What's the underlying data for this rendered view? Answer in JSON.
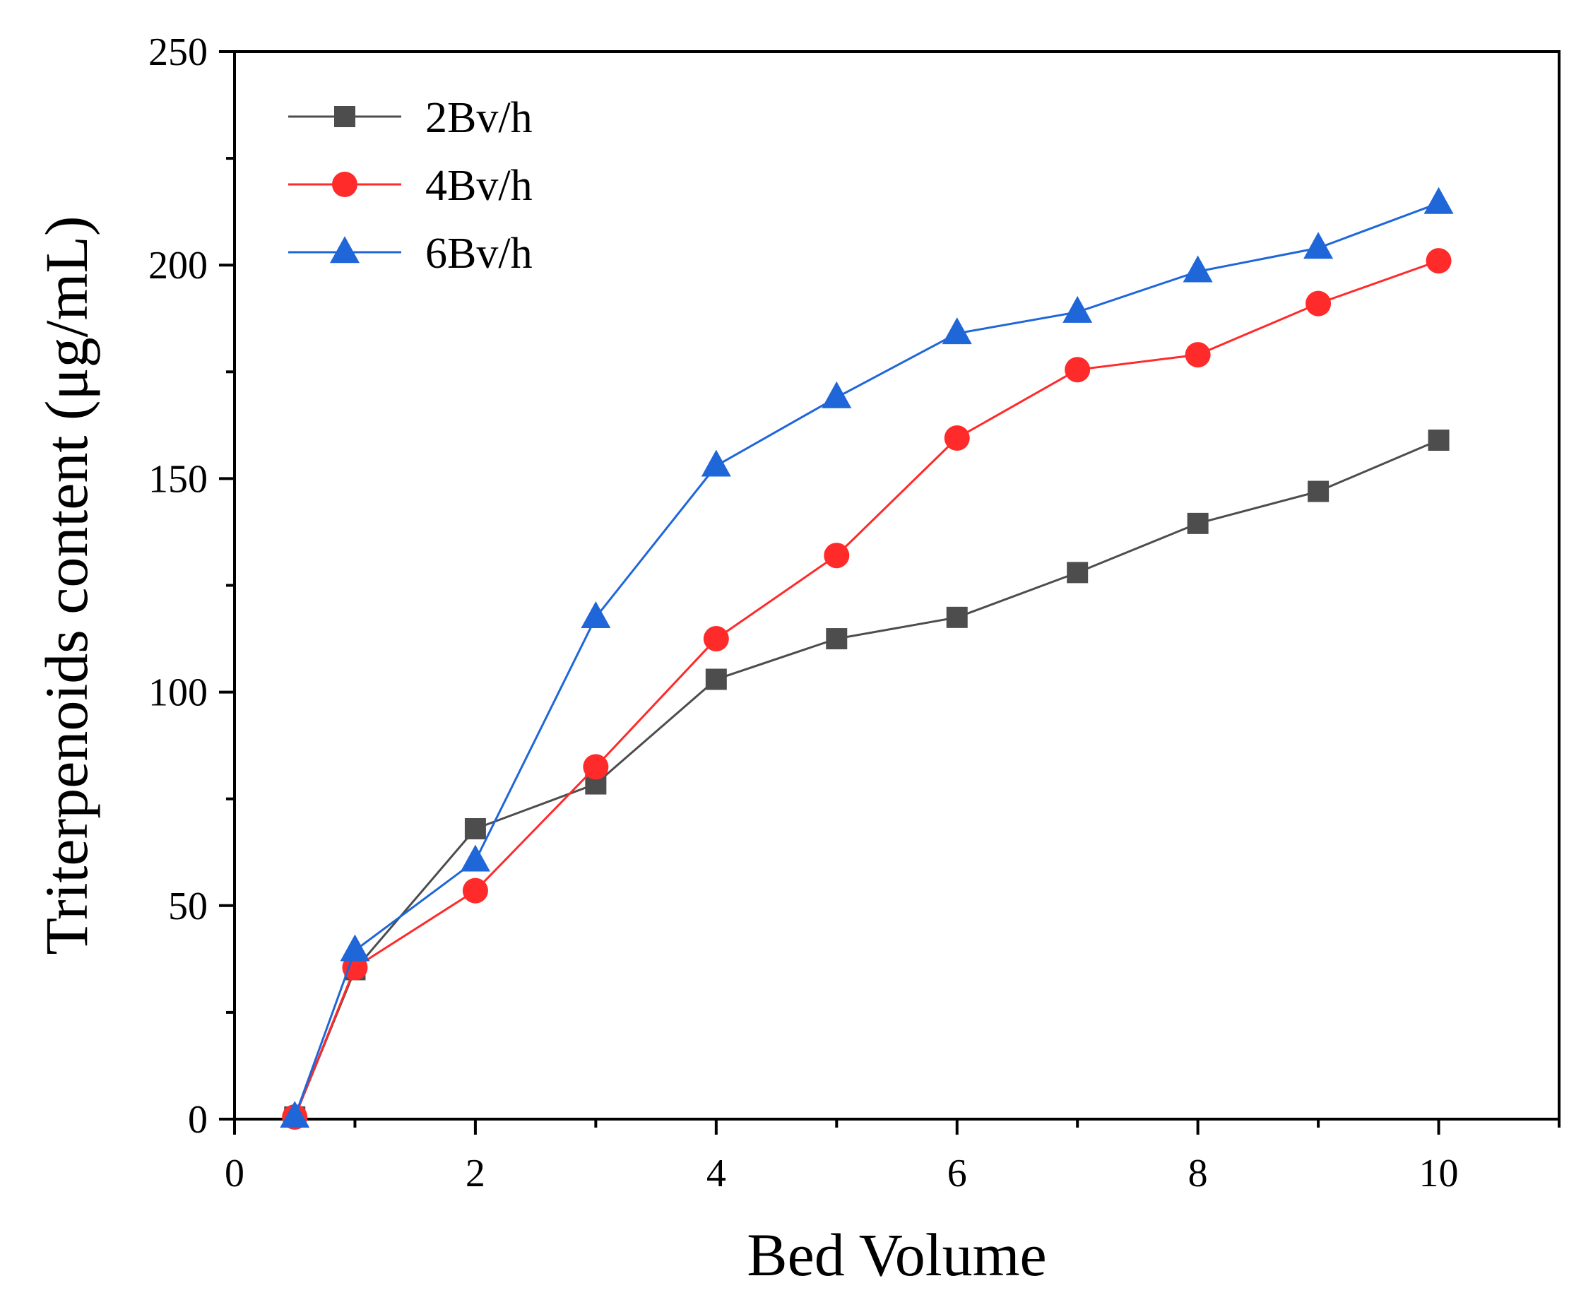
{
  "chart_data": {
    "type": "line",
    "title": "",
    "xlabel": "Bed Volume",
    "ylabel": "Triterpenoids content (μg/mL)",
    "xlim": [
      0,
      11
    ],
    "ylim": [
      0,
      250
    ],
    "xticks": [
      0,
      2,
      4,
      6,
      8,
      10
    ],
    "yticks": [
      0,
      50,
      100,
      150,
      200,
      250
    ],
    "x_minor_ticks": [
      1,
      3,
      5,
      7,
      9,
      11
    ],
    "y_minor_ticks": [
      25,
      75,
      125,
      175,
      225
    ],
    "grid": false,
    "legend_position": "top-left",
    "x": [
      0.5,
      1,
      2,
      3,
      4,
      5,
      6,
      7,
      8,
      9,
      10
    ],
    "series": [
      {
        "name": "2Bv/h",
        "color": "#4d4d4d",
        "marker": "square",
        "values": [
          0.5,
          35,
          68,
          78.5,
          103,
          112.5,
          117.5,
          128,
          139.5,
          147,
          159
        ]
      },
      {
        "name": "4Bv/h",
        "color": "#ff2a2a",
        "marker": "circle",
        "values": [
          0.5,
          35.5,
          53.5,
          82.5,
          112.5,
          132,
          159.5,
          175.5,
          179,
          191,
          201
        ]
      },
      {
        "name": "6Bv/h",
        "color": "#1f66d9",
        "marker": "triangle",
        "values": [
          0.5,
          39.5,
          60.5,
          117.5,
          153,
          169,
          184,
          189,
          198.5,
          204,
          214.5
        ]
      }
    ]
  }
}
